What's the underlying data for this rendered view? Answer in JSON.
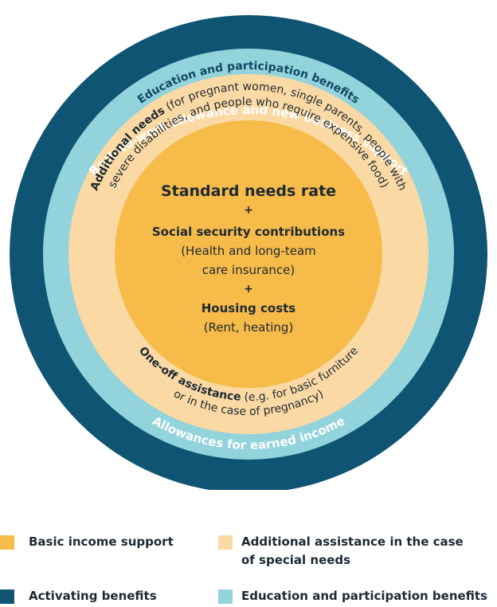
{
  "colors": {
    "activating": "#0f5573",
    "education": "#92d3dc",
    "additional": "#fbd9a4",
    "basic": "#f7bb4a",
    "ring_text_light": "#ffffff",
    "ring_text_dark": "#0f4a66",
    "body_text": "#1d2a33"
  },
  "rings": {
    "outer_top": "Back-to-work allowance and new business support",
    "outer_bottom": "Allowances for earned income",
    "education_top": "Education and participation benefits",
    "additional_top_bold": "Additional needs",
    "additional_top_rest": " (for pregnant women, single parents, people with",
    "additional_top_line2": "severe disabilities, and people who require expensive food)",
    "oneoff_bold": "One-off assistance",
    "oneoff_rest": " (e.g. for basic furniture",
    "oneoff_line2": "or in the case of pregnancy)"
  },
  "core": {
    "title": "Standard needs rate",
    "plus1": "+",
    "social_title": "Social security contributions",
    "social_line1": "(Health and long-team",
    "social_line2": "care insurance)",
    "plus2": "+",
    "housing_title": "Housing costs",
    "housing_sub": "(Rent, heating)"
  },
  "legend": {
    "basic": "Basic income support",
    "additional_line1": "Additional assistance in the case",
    "additional_line2": "of special needs",
    "activating": "Activating benefits",
    "education": "Education and participation benefits"
  }
}
